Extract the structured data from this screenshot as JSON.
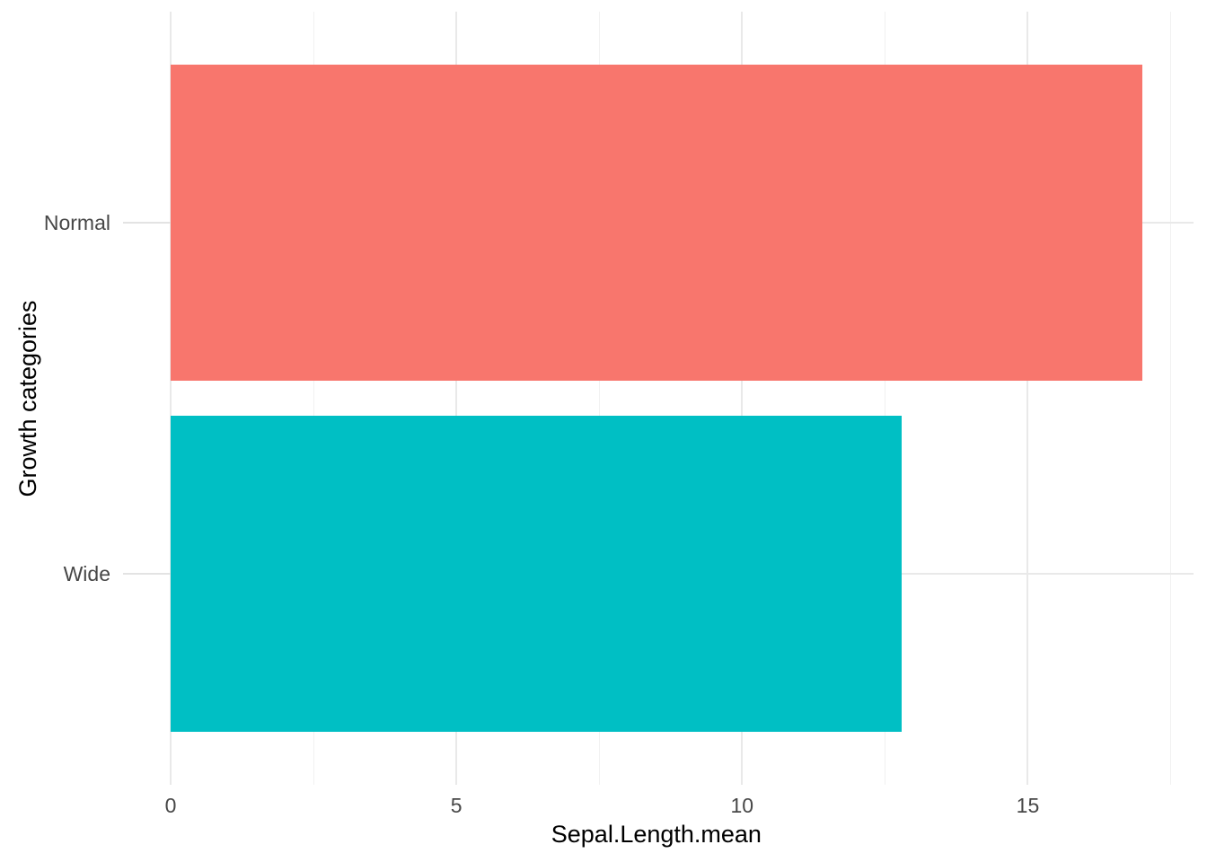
{
  "chart_data": {
    "type": "bar",
    "orientation": "horizontal",
    "title": "",
    "xlabel": "Sepal.Length.mean",
    "ylabel": "Growth categories",
    "categories": [
      "Normal",
      "Wide"
    ],
    "values": [
      17.0,
      12.8
    ],
    "bar_colors": [
      "#F8766D",
      "#00BFC4"
    ],
    "x_ticks": [
      0,
      5,
      10,
      15
    ],
    "x_tick_labels": [
      "0",
      "5",
      "10",
      "15"
    ],
    "x_minor_ticks": [
      2.5,
      7.5,
      12.5,
      17.5
    ],
    "xlim": [
      0,
      17.9
    ],
    "grid": "on",
    "legend": "none",
    "background_color": "#FFFFFF",
    "major_grid_color": "#E9E9E9",
    "minor_grid_color": "#F1F1F1",
    "tick_label_color": "#474747",
    "axis_title_color": "#000000"
  }
}
